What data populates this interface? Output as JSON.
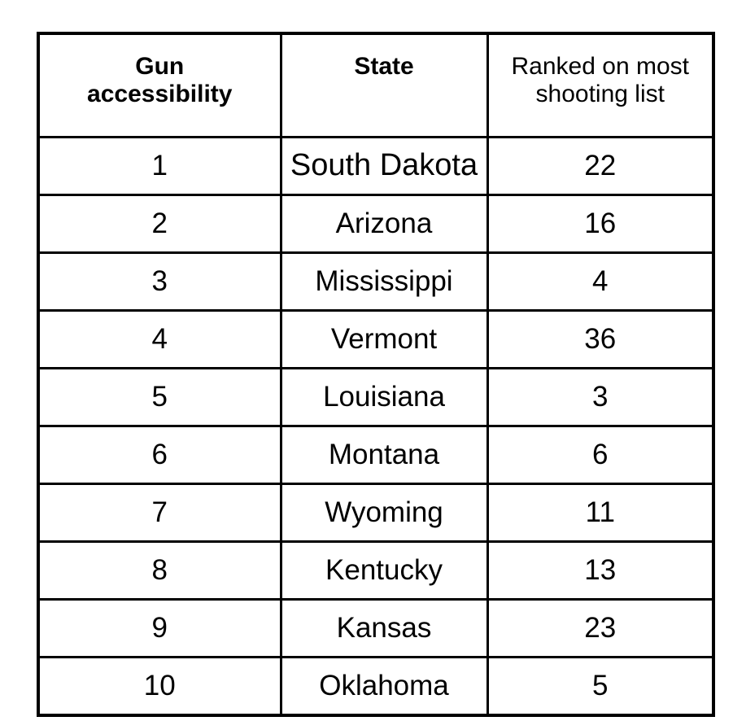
{
  "chart_data": {
    "type": "table",
    "columns": [
      "Gun accessibility",
      "State",
      "Ranked on most shooting list"
    ],
    "rows": [
      [
        "1",
        "South Dakota",
        "22"
      ],
      [
        "2",
        "Arizona",
        "16"
      ],
      [
        "3",
        "Mississippi",
        "4"
      ],
      [
        "4",
        "Vermont",
        "36"
      ],
      [
        "5",
        "Louisiana",
        "3"
      ],
      [
        "6",
        "Montana",
        "6"
      ],
      [
        "7",
        "Wyoming",
        "11"
      ],
      [
        "8",
        "Kentucky",
        "13"
      ],
      [
        "9",
        "Kansas",
        "23"
      ],
      [
        "10",
        "Oklahoma",
        "5"
      ]
    ],
    "title": "",
    "layout": {
      "grid": "on",
      "border_color": "#000000",
      "text_color": "#000000",
      "background_color": "#ffffff",
      "bold_headers": [
        "Gun accessibility",
        "State"
      ]
    }
  }
}
